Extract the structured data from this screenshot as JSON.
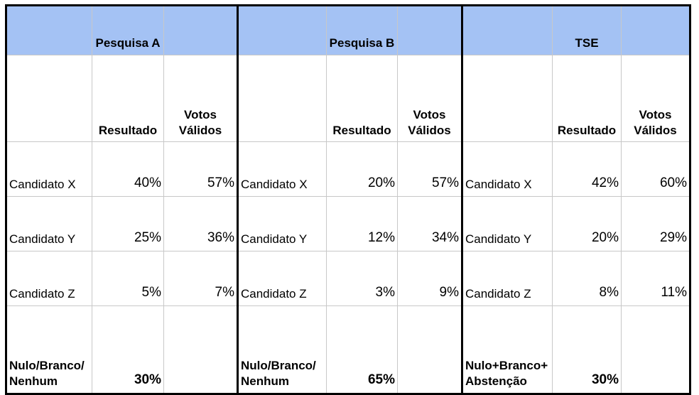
{
  "headers": [
    "Pesquisa A",
    "Pesquisa B",
    "TSE"
  ],
  "sub_headers": {
    "resultado": "Resultado",
    "votos_validos_1": "Votos",
    "votos_validos_2": "Válidos"
  },
  "groups": [
    {
      "rows": [
        {
          "label": "Candidato X",
          "resultado": "40%",
          "votos_validos": "57%"
        },
        {
          "label": "Candidato Y",
          "resultado": "25%",
          "votos_validos": "36%"
        },
        {
          "label": "Candidato Z",
          "resultado": "5%",
          "votos_validos": "7%"
        }
      ],
      "nulo_label_1": "Nulo/Branco/",
      "nulo_label_2": "Nenhum",
      "nulo_resultado": "30%"
    },
    {
      "rows": [
        {
          "label": "Candidato X",
          "resultado": "20%",
          "votos_validos": "57%"
        },
        {
          "label": "Candidato Y",
          "resultado": "12%",
          "votos_validos": "34%"
        },
        {
          "label": "Candidato Z",
          "resultado": "3%",
          "votos_validos": "9%"
        }
      ],
      "nulo_label_1": "Nulo/Branco/",
      "nulo_label_2": "Nenhum",
      "nulo_resultado": "65%"
    },
    {
      "rows": [
        {
          "label": "Candidato X",
          "resultado": "42%",
          "votos_validos": "60%"
        },
        {
          "label": "Candidato Y",
          "resultado": "20%",
          "votos_validos": "29%"
        },
        {
          "label": "Candidato Z",
          "resultado": "8%",
          "votos_validos": "11%"
        }
      ],
      "nulo_label_1": "Nulo+Branco+",
      "nulo_label_2": "Abstenção",
      "nulo_resultado": "30%"
    }
  ],
  "colors": {
    "header_bg": "#a4c2f4",
    "grid": "#c8c8c8",
    "group_border": "#000000"
  }
}
